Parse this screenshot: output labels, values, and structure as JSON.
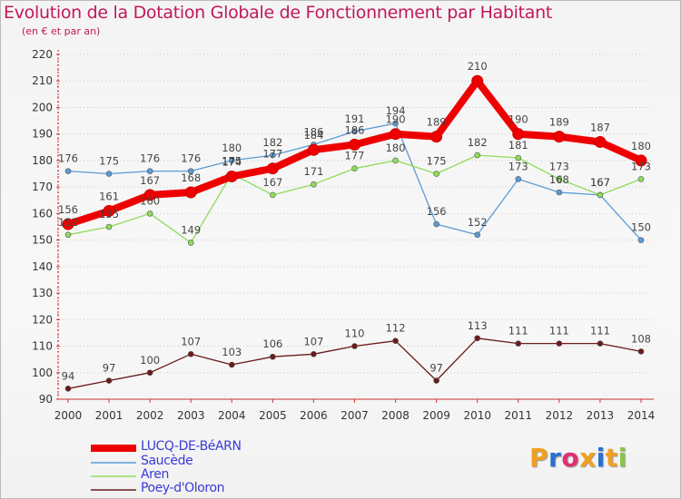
{
  "title": "Evolution de la Dotation Globale de Fonctionnement par Habitant",
  "subtitle": "(en € et par an)",
  "logo": "Proxiti",
  "chart_data": {
    "type": "line",
    "title": "Evolution de la Dotation Globale de Fonctionnement par Habitant",
    "subtitle": "(en € et par an)",
    "x": [
      "2000",
      "2001",
      "2002",
      "2003",
      "2004",
      "2005",
      "2006",
      "2007",
      "2008",
      "2009",
      "2010",
      "2011",
      "2012",
      "2013",
      "2014"
    ],
    "ylim": [
      90,
      220
    ],
    "yticks": [
      90,
      100,
      110,
      120,
      130,
      140,
      150,
      160,
      170,
      180,
      190,
      200,
      210,
      220
    ],
    "grid": "horizontal dotted",
    "legend": "bottom-left",
    "series": [
      {
        "name": "LUCQ-DE-BéARN",
        "color": "#ee0000",
        "values": [
          156,
          161,
          167,
          168,
          174,
          177,
          184,
          186,
          190,
          189,
          210,
          190,
          189,
          187,
          180
        ]
      },
      {
        "name": "Saucède",
        "color": "#5b9bd5",
        "values": [
          176,
          175,
          176,
          176,
          180,
          182,
          186,
          191,
          194,
          156,
          152,
          173,
          168,
          167,
          150
        ]
      },
      {
        "name": "Aren",
        "color": "#8fdc5a",
        "values": [
          152,
          155,
          160,
          149,
          175,
          167,
          171,
          177,
          180,
          175,
          182,
          181,
          173,
          167,
          173
        ]
      },
      {
        "name": "Poey-d'Oloron",
        "color": "#6b1a1a",
        "values": [
          94,
          97,
          100,
          107,
          103,
          106,
          107,
          110,
          112,
          97,
          113,
          111,
          111,
          111,
          108
        ]
      }
    ]
  }
}
